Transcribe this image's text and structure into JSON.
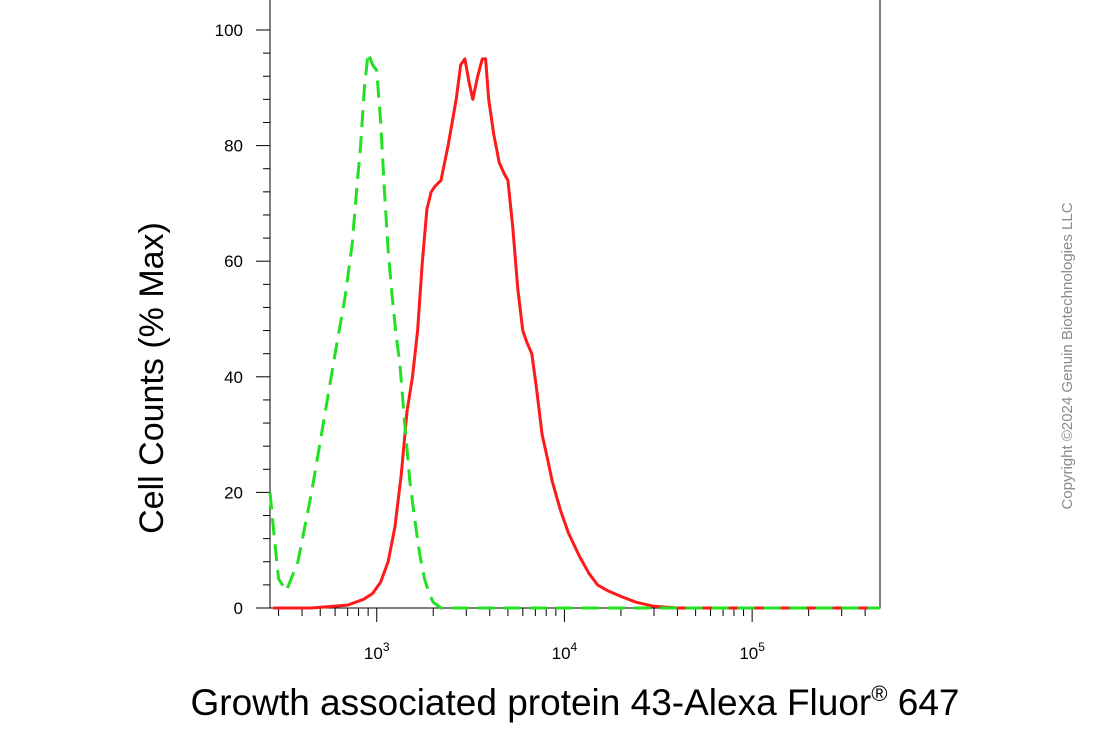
{
  "chart_data": {
    "type": "line",
    "xlabel": "Growth associated protein 43-Alexa Fluor",
    "xlabel_superscript": "®",
    "xlabel_suffix": " 647",
    "ylabel": "Cell Counts (% Max)",
    "x_scale": "log",
    "xlim": [
      270,
      480000
    ],
    "ylim": [
      0,
      100
    ],
    "y_ticks": [
      "0",
      "20",
      "40",
      "60",
      "80",
      "100"
    ],
    "x_tick_labels": [
      {
        "base": "10",
        "exp": "3",
        "value": 1000
      },
      {
        "base": "10",
        "exp": "4",
        "value": 10000
      },
      {
        "base": "10",
        "exp": "5",
        "value": 100000
      }
    ],
    "grid": false,
    "series": [
      {
        "color": "#ff1a1a",
        "style": "solid",
        "points": [
          [
            280,
            0
          ],
          [
            450,
            0
          ],
          [
            700,
            0.5
          ],
          [
            850,
            1.5
          ],
          [
            950,
            2.5
          ],
          [
            1050,
            4.5
          ],
          [
            1150,
            8
          ],
          [
            1250,
            14
          ],
          [
            1350,
            23
          ],
          [
            1450,
            34
          ],
          [
            1550,
            40
          ],
          [
            1650,
            48
          ],
          [
            1750,
            60
          ],
          [
            1850,
            69
          ],
          [
            1950,
            72
          ],
          [
            2050,
            73
          ],
          [
            2200,
            74
          ],
          [
            2400,
            80
          ],
          [
            2650,
            88
          ],
          [
            2800,
            94
          ],
          [
            2950,
            95
          ],
          [
            3100,
            91
          ],
          [
            3250,
            88
          ],
          [
            3450,
            92
          ],
          [
            3650,
            95
          ],
          [
            3800,
            95
          ],
          [
            3950,
            88
          ],
          [
            4200,
            82
          ],
          [
            4500,
            77
          ],
          [
            4800,
            75
          ],
          [
            5000,
            74
          ],
          [
            5300,
            66
          ],
          [
            5650,
            55
          ],
          [
            6000,
            48
          ],
          [
            6300,
            46
          ],
          [
            6700,
            44
          ],
          [
            7100,
            38
          ],
          [
            7600,
            30
          ],
          [
            8100,
            26
          ],
          [
            8600,
            22
          ],
          [
            9500,
            17
          ],
          [
            10500,
            13
          ],
          [
            12000,
            9
          ],
          [
            13500,
            6
          ],
          [
            15000,
            4
          ],
          [
            17000,
            3
          ],
          [
            20000,
            2
          ],
          [
            24000,
            1
          ],
          [
            30000,
            0.3
          ],
          [
            40000,
            0
          ],
          [
            480000,
            0
          ]
        ]
      },
      {
        "color": "#22e022",
        "style": "dashed",
        "points": [
          [
            270,
            20
          ],
          [
            285,
            12
          ],
          [
            300,
            5
          ],
          [
            330,
            3
          ],
          [
            380,
            8
          ],
          [
            450,
            20
          ],
          [
            520,
            32
          ],
          [
            600,
            44
          ],
          [
            680,
            54
          ],
          [
            740,
            63
          ],
          [
            780,
            72
          ],
          [
            820,
            80
          ],
          [
            860,
            90
          ],
          [
            900,
            96
          ],
          [
            950,
            94
          ],
          [
            1000,
            93
          ],
          [
            1050,
            84
          ],
          [
            1100,
            72
          ],
          [
            1150,
            62
          ],
          [
            1200,
            55
          ],
          [
            1260,
            48
          ],
          [
            1330,
            42
          ],
          [
            1400,
            33
          ],
          [
            1500,
            22
          ],
          [
            1600,
            15
          ],
          [
            1700,
            9
          ],
          [
            1800,
            5
          ],
          [
            1900,
            2.5
          ],
          [
            2000,
            1
          ],
          [
            2200,
            0
          ],
          [
            480000,
            0
          ]
        ]
      }
    ]
  },
  "watermark": {
    "text": "Copyright ©2024 Genuin Biotechnologies LLC"
  }
}
